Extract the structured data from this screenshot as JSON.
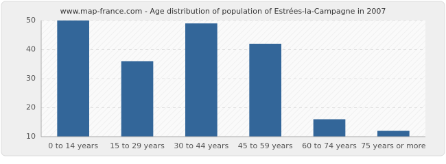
{
  "chart_data": {
    "type": "bar",
    "title": "www.map-france.com - Age distribution of population of Estrées-la-Campagne in 2007",
    "categories": [
      "0 to 14 years",
      "15 to 29 years",
      "30 to 44 years",
      "45 to 59 years",
      "60 to 74 years",
      "75 years or more"
    ],
    "values": [
      50,
      36,
      49,
      42,
      16,
      12
    ],
    "color": "#336699",
    "ylim": [
      10,
      50
    ],
    "yticks": [
      10,
      20,
      30,
      40,
      50
    ],
    "grid": true
  }
}
